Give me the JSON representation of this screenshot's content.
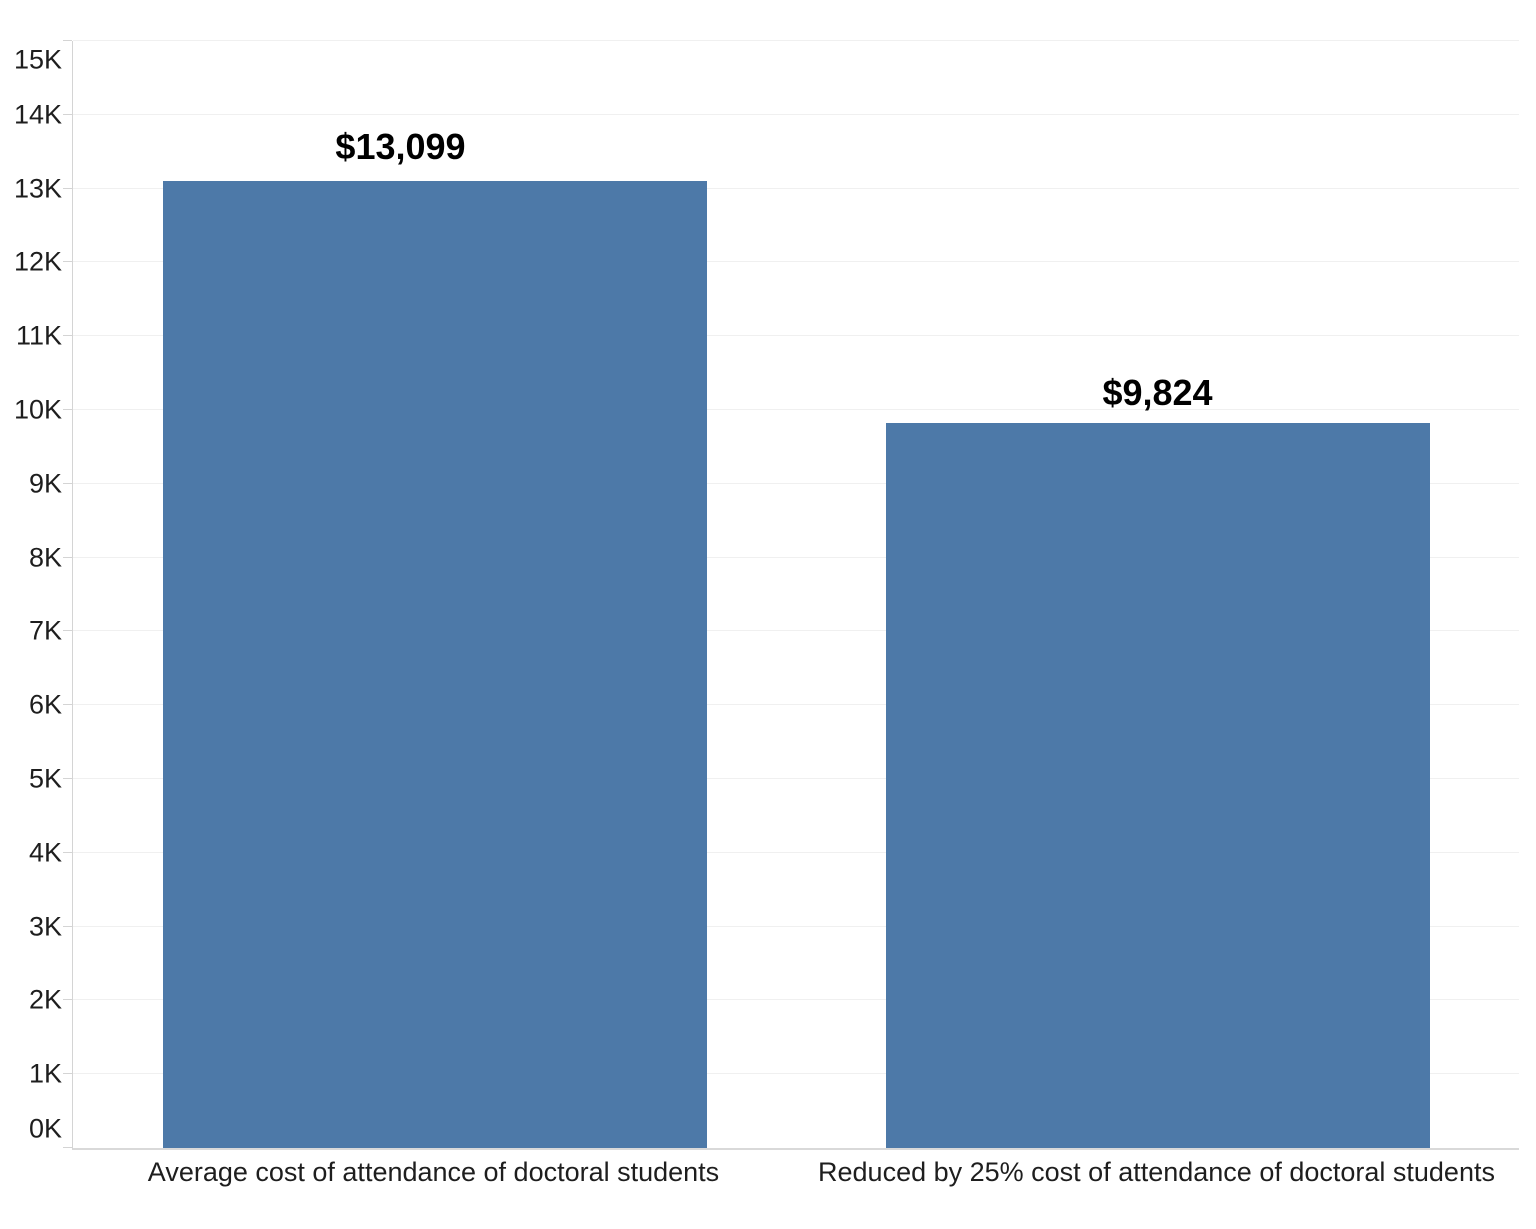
{
  "chart_data": {
    "type": "bar",
    "title": "",
    "xlabel": "",
    "ylabel": "",
    "categories": [
      "Average cost of attendance of doctoral students",
      "Reduced by 25% cost of attendance of doctoral students"
    ],
    "values": [
      13099,
      9824
    ],
    "bar_labels": [
      "$13,099",
      "$9,824"
    ],
    "y_tick_labels": [
      "0K",
      "1K",
      "2K",
      "3K",
      "4K",
      "5K",
      "6K",
      "7K",
      "8K",
      "9K",
      "10K",
      "11K",
      "12K",
      "13K",
      "14K",
      "15K"
    ],
    "ylim": [
      0,
      15000
    ],
    "y_tick_step": 1000,
    "grid": "horizontal",
    "legend": "none",
    "colors": {
      "bar": "#4d79a8",
      "grid_line": "#f0f0f0",
      "axis_line": "#d4d4d4",
      "tick_label": "#1e1e1e",
      "category_label": "#1e1e1e",
      "data_label": "#000000"
    }
  }
}
